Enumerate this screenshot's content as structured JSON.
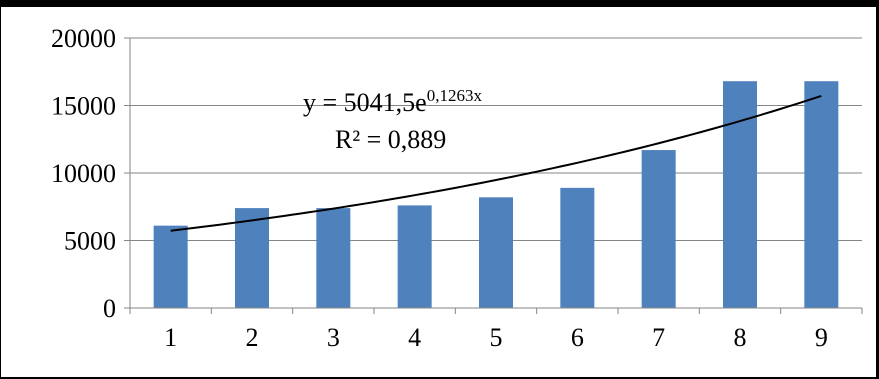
{
  "chart_data": {
    "type": "bar",
    "categories": [
      "1",
      "2",
      "3",
      "4",
      "5",
      "6",
      "7",
      "8",
      "9"
    ],
    "values": [
      6100,
      7400,
      7400,
      7600,
      8200,
      8900,
      11700,
      16800,
      16800
    ],
    "ylim": [
      0,
      20000
    ],
    "yticks": [
      "0",
      "5000",
      "10000",
      "15000",
      "20000"
    ],
    "grid": true,
    "legend": "none",
    "colors": {
      "bar": "#4f81bd",
      "trendline": "#000000",
      "grid": "#868686"
    },
    "trendline": {
      "type": "exponential",
      "a": 5041.5,
      "b": 0.1263,
      "equation_prefix": "y = 5041,5e",
      "equation_exponent": "0,1263x",
      "r_squared": "R² = 0,889"
    }
  }
}
